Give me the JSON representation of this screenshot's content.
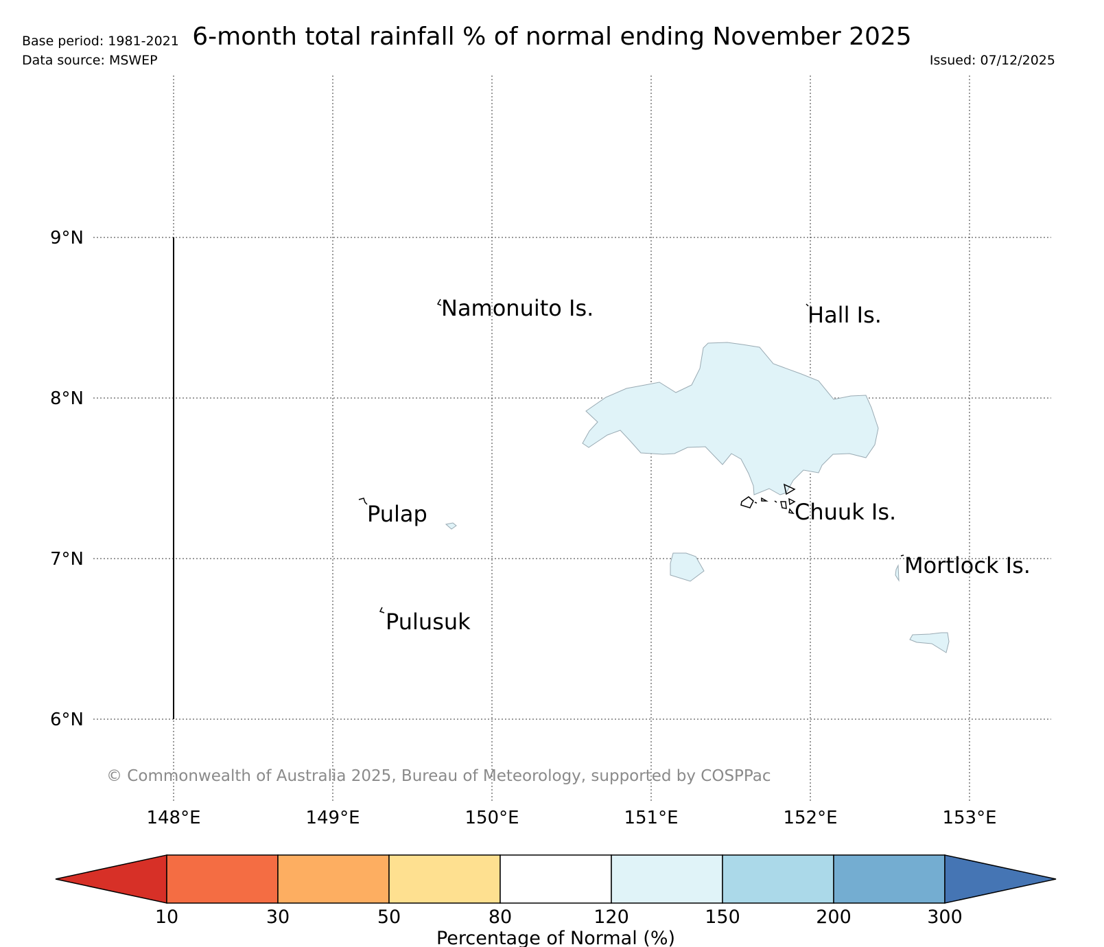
{
  "header": {
    "title": "6-month total rainfall % of normal ending November 2025",
    "base_period": "Base period: 1981-2021",
    "data_source": "Data source: MSWEP",
    "issued": "Issued: 07/12/2025"
  },
  "map": {
    "lat_labels": [
      "9°N",
      "8°N",
      "7°N",
      "6°N"
    ],
    "lon_labels": [
      "148°E",
      "149°E",
      "150°E",
      "151°E",
      "152°E",
      "153°E"
    ],
    "places": {
      "namonuito": "Namonuito Is.",
      "hall": "Hall Is.",
      "pulap": "Pulap",
      "chuuk": "Chuuk Is.",
      "mortlock": "Mortlock Is.",
      "pulusuk": "Pulusuk"
    },
    "shading_colour": "#e0f3f8",
    "copyright": "© Commonwealth of Australia 2025, Bureau of Meteorology, supported by COSPPac"
  },
  "legend": {
    "label": "Percentage of Normal (%)",
    "ticks": [
      "10",
      "30",
      "50",
      "80",
      "120",
      "150",
      "200",
      "300"
    ],
    "colors": [
      "#d73027",
      "#f46d43",
      "#fdae61",
      "#fee090",
      "#ffffff",
      "#e0f3f8",
      "#abd9e9",
      "#74add1",
      "#4575b4"
    ]
  }
}
